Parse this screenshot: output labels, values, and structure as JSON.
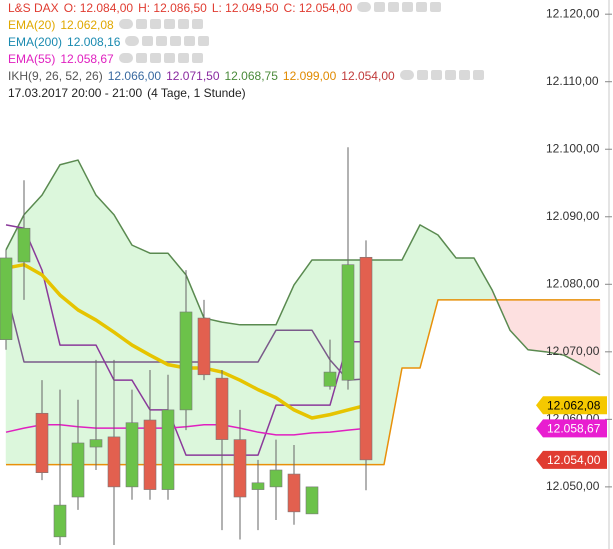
{
  "chart_data": {
    "type": "candlestick",
    "ylim": [
      12040.8,
      12122.1
    ],
    "yticks": [
      {
        "value": 12050,
        "label": "12.050,00"
      },
      {
        "value": 12060,
        "label": "12.060,00"
      },
      {
        "value": 12070,
        "label": "12.070,00"
      },
      {
        "value": 12080,
        "label": "12.080,00"
      },
      {
        "value": 12090,
        "label": "12.090,00"
      },
      {
        "value": 12100,
        "label": "12.100,00"
      },
      {
        "value": 12110,
        "label": "12.110,00"
      },
      {
        "value": 12120,
        "label": "12.120,00"
      }
    ],
    "grid": false,
    "candles": {
      "name": "L&S DAX",
      "legend_values": [
        "O: 12.084,00",
        "H: 12.086,50",
        "L: 12.049,50",
        "C: 12.054,00"
      ],
      "color": "#e03c31",
      "up_color": "#6cc24a",
      "down_color": "#e2604f",
      "open": [
        12071.8,
        12083.3,
        12060.9,
        12042.6,
        12048.5,
        12055.9,
        12057.4,
        12050.0,
        12059.9,
        12049.6,
        12061.4,
        12075.0,
        12066.1,
        12057.0,
        12049.6,
        12050.0,
        12051.9,
        12046.0,
        12064.9,
        12065.8,
        12084.0
      ],
      "high": [
        12085.1,
        12095.4,
        12065.8,
        12064.4,
        12062.9,
        12068.8,
        12068.8,
        12064.4,
        12067.3,
        12066.6,
        12082.1,
        12077.7,
        12067.3,
        12061.4,
        12054.0,
        12057.0,
        12056.2,
        12050.0,
        12071.8,
        12100.3,
        12086.5
      ],
      "low": [
        12070.3,
        12077.7,
        12051.0,
        12041.4,
        12046.6,
        12052.5,
        12041.4,
        12048.1,
        12048.1,
        12048.1,
        12058.4,
        12065.8,
        12043.6,
        12042.2,
        12043.6,
        12045.1,
        12044.4,
        12046.0,
        12064.4,
        12064.4,
        12049.5
      ],
      "close": [
        12083.9,
        12088.3,
        12052.1,
        12047.3,
        12056.5,
        12057.0,
        12050.0,
        12059.5,
        12049.6,
        12061.4,
        12075.9,
        12066.6,
        12057.0,
        12048.5,
        12050.6,
        12052.5,
        12046.3,
        12050.0,
        12067.0,
        12082.9,
        12054.0
      ],
      "tag": "12.054,00"
    },
    "series": [
      {
        "name": "EMA(20)",
        "color": "#e6c400",
        "legend_color": "#e0a800",
        "legend_value": "12.062,08",
        "tag": "12.062,08",
        "tag_color": "#f5c800",
        "tag_text_color": "#000000",
        "values": [
          12082.4,
          12082.9,
          12081.4,
          12078.4,
          12076.2,
          12074.7,
          12072.9,
          12071.0,
          12069.5,
          12068.1,
          12067.6,
          12067.6,
          12067.0,
          12065.8,
          12064.4,
          12063.2,
          12061.4,
          12060.2,
          12060.7,
          12061.4,
          12062.08
        ]
      },
      {
        "name": "EMA(200)",
        "color": "#1a8ab0",
        "legend_color": "#1a8ab0",
        "legend_value": "12.008,16"
      },
      {
        "name": "EMA(55)",
        "color": "#e020c0",
        "legend_color": "#e020c0",
        "legend_value": "12.058,67",
        "tag": "12.058,67",
        "tag_color": "#e81ed0",
        "tag_text_color": "#ffffff",
        "values": [
          12058.1,
          12058.7,
          12059.2,
          12059.2,
          12058.9,
          12058.7,
          12058.7,
          12058.7,
          12058.7,
          12058.7,
          12058.9,
          12059.2,
          12059.2,
          12058.7,
          12058.1,
          12057.7,
          12057.7,
          12058.0,
          12058.1,
          12058.4,
          12058.67
        ]
      }
    ],
    "ichimoku": {
      "name": "IKH(9, 26, 52, 26)",
      "legend_values": [
        {
          "text": "12.066,00",
          "color": "#3a6aa0"
        },
        {
          "text": "12.071,50",
          "color": "#8a2aa0"
        },
        {
          "text": "12.068,75",
          "color": "#4a8a3a"
        },
        {
          "text": "12.099,00",
          "color": "#e08a00"
        },
        {
          "text": "12.054,00",
          "color": "#c03a3a"
        }
      ],
      "up_fill": "#dcf7dc",
      "down_fill": "#fde0e0",
      "span_a": {
        "color": "#5a8a50",
        "values": [
          12085.1,
          12090.3,
          12093.2,
          12097.7,
          12098.4,
          12093.2,
          12090.3,
          12085.8,
          12084.6,
          12084.6,
          12081.4,
          12075.0,
          12074.4,
          12074.0,
          12074.0,
          12074.0,
          12079.9,
          12083.6,
          12083.6,
          12083.6,
          12083.6,
          12083.6,
          12083.6,
          12088.8,
          12087.3,
          12083.9,
          12083.9,
          12079.2,
          12073.2,
          12070.3,
          12070.0,
          12069.5,
          12068.1,
          12066.6
        ]
      },
      "span_b": {
        "color": "#e8900a",
        "values": [
          12053.3,
          12053.3,
          12053.3,
          12053.3,
          12053.3,
          12053.3,
          12053.3,
          12053.3,
          12053.3,
          12053.3,
          12053.3,
          12053.3,
          12053.3,
          12053.3,
          12053.3,
          12053.3,
          12053.3,
          12053.3,
          12053.3,
          12053.3,
          12053.3,
          12053.3,
          12067.6,
          12067.6,
          12077.7,
          12077.7,
          12077.7,
          12077.7,
          12077.7,
          12077.7,
          12077.7,
          12077.7,
          12077.7,
          12077.7
        ]
      },
      "lines": [
        {
          "color": "#7a5a8a",
          "values": [
            12079.2,
            12068.5,
            12068.5,
            12068.5,
            12068.5,
            12068.5,
            12068.5,
            12068.5,
            12068.5,
            12068.5,
            12068.5,
            12068.5,
            12068.5,
            12068.5,
            12068.5,
            12073.2,
            12073.2,
            12073.2,
            12068.8,
            12065.8,
            12066.0
          ]
        },
        {
          "color": "#8a3a9a",
          "values": [
            12088.8,
            12088.3,
            12082.1,
            12071.0,
            12071.0,
            12071.0,
            12065.8,
            12065.8,
            12061.4,
            12061.4,
            12054.7,
            12054.7,
            12054.7,
            12054.7,
            12054.7,
            12062.1,
            12062.1,
            12062.1,
            12062.1,
            12071.5,
            12071.5
          ]
        }
      ]
    },
    "period": "17.03.2017 20:00 - 21:00",
    "period_note": "(4 Tage, 1 Stunde)"
  }
}
